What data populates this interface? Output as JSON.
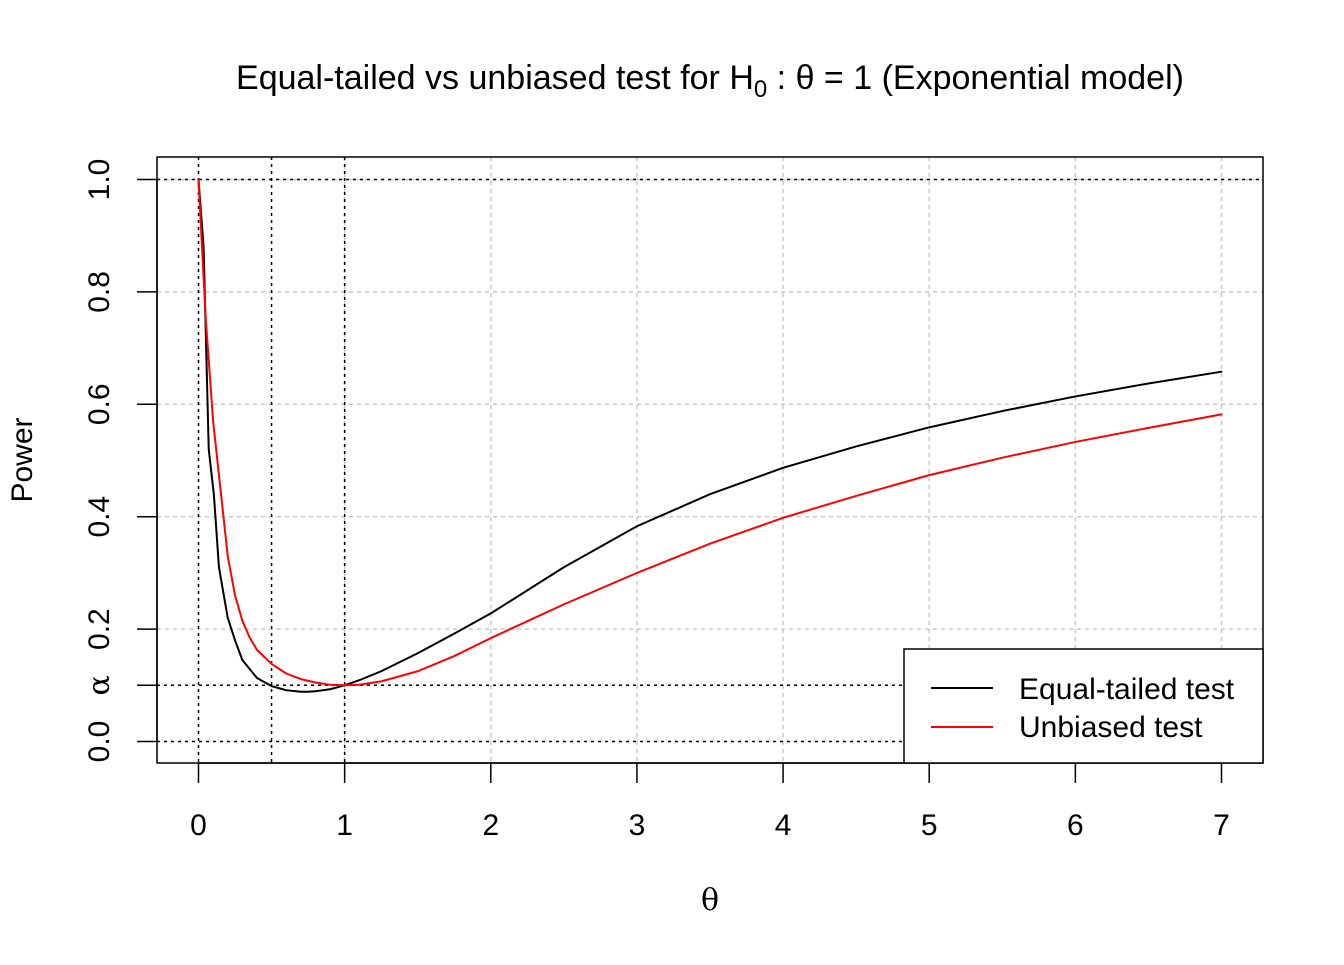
{
  "chart_data": {
    "type": "line",
    "title": {
      "prefix": "Equal-tailed vs unbiased test for H",
      "subscript": "0",
      "suffix": " : θ = 1 (Exponential model)"
    },
    "xlabel": "θ",
    "ylabel": "Power",
    "xlim": [
      0,
      7
    ],
    "ylim": [
      0,
      1
    ],
    "x_ticks": [
      0,
      1,
      2,
      3,
      4,
      5,
      6,
      7
    ],
    "x_tick_labels": [
      "0",
      "1",
      "2",
      "3",
      "4",
      "5",
      "6",
      "7"
    ],
    "y_ticks": [
      0.0,
      0.1,
      0.2,
      0.4,
      0.6,
      0.8,
      1.0
    ],
    "y_tick_labels": [
      "0.0",
      "α",
      "0.2",
      "0.4",
      "0.6",
      "0.8",
      "1.0"
    ],
    "grid": true,
    "grid_x": [
      1,
      2,
      3,
      4,
      5,
      6,
      7
    ],
    "grid_y": [
      0.2,
      0.4,
      0.6,
      0.8,
      1.0
    ],
    "reference_lines": {
      "vertical": [
        0,
        0.5,
        1
      ],
      "horizontal": [
        0,
        0.1,
        1
      ]
    },
    "legend_position": "bottom-right",
    "series": [
      {
        "name": "Equal-tailed test",
        "color": "#000000",
        "x": [
          0,
          0.035,
          0.07,
          0.105,
          0.14,
          0.2,
          0.25,
          0.3,
          0.4,
          0.5,
          0.6,
          0.7,
          0.75,
          0.8,
          0.9,
          1.0,
          1.1,
          1.25,
          1.5,
          1.75,
          2.0,
          2.5,
          3.0,
          3.5,
          4.0,
          4.5,
          5.0,
          5.5,
          6.0,
          6.5,
          7.0
        ],
        "values": [
          1.0,
          0.88,
          0.52,
          0.44,
          0.31,
          0.22,
          0.18,
          0.145,
          0.113,
          0.0985,
          0.0913,
          0.0885,
          0.0885,
          0.0895,
          0.093,
          0.1,
          0.109,
          0.125,
          0.157,
          0.192,
          0.228,
          0.31,
          0.383,
          0.44,
          0.487,
          0.525,
          0.559,
          0.588,
          0.614,
          0.637,
          0.658
        ]
      },
      {
        "name": "Unbiased test",
        "color": "#ff0000",
        "x": [
          0,
          0.05,
          0.1,
          0.15,
          0.2,
          0.25,
          0.3,
          0.35,
          0.4,
          0.5,
          0.6,
          0.7,
          0.8,
          0.9,
          1.0,
          1.1,
          1.25,
          1.5,
          1.75,
          2.0,
          2.5,
          3.0,
          3.5,
          4.0,
          4.5,
          5.0,
          5.5,
          6.0,
          6.5,
          7.0
        ],
        "values": [
          1.0,
          0.75,
          0.57,
          0.45,
          0.33,
          0.26,
          0.215,
          0.185,
          0.163,
          0.138,
          0.121,
          0.111,
          0.105,
          0.101,
          0.1,
          0.101,
          0.107,
          0.125,
          0.152,
          0.184,
          0.244,
          0.3,
          0.352,
          0.398,
          0.437,
          0.474,
          0.505,
          0.533,
          0.558,
          0.582
        ]
      }
    ]
  }
}
